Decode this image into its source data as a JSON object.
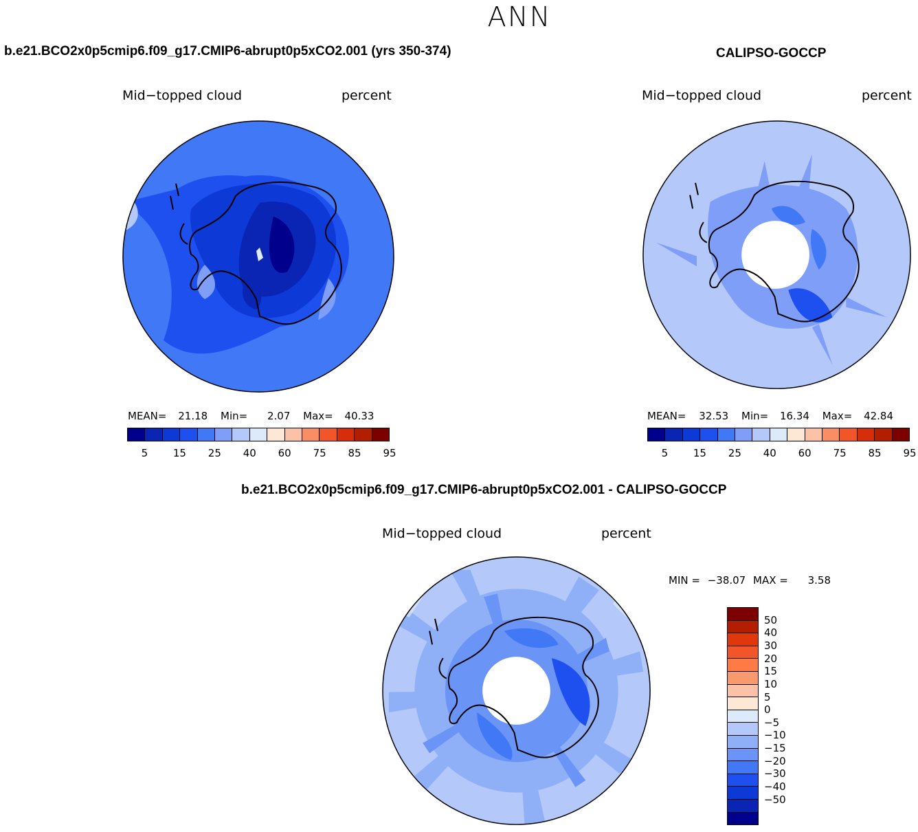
{
  "main_title": "ANN",
  "panels": {
    "model": {
      "case_title": "b.e21.BCO2x0p5cmip6.f09_g17.CMIP6-abrupt0p5xCO2.001 (yrs 350-374)",
      "variable": "Mid−topped cloud",
      "units": "percent",
      "stats": {
        "mean_label": "MEAN=",
        "mean": "21.18",
        "min_label": "Min=",
        "min": "2.07",
        "max_label": "Max=",
        "max": "40.33"
      }
    },
    "obs": {
      "case_title": "CALIPSO-GOCCP",
      "variable": "Mid−topped cloud",
      "units": "percent",
      "stats": {
        "mean_label": "MEAN=",
        "mean": "32.53",
        "min_label": "Min=",
        "min": "16.34",
        "max_label": "Max=",
        "max": "42.84"
      }
    },
    "diff": {
      "case_title": "b.e21.BCO2x0p5cmip6.f09_g17.CMIP6-abrupt0p5xCO2.001 - CALIPSO-GOCCP",
      "variable": "Mid−topped cloud",
      "units": "percent",
      "stats": {
        "min_label": "MIN =",
        "min": "−38.07",
        "max_label": "MAX =",
        "max": "3.58"
      }
    }
  },
  "colorbar_abs": {
    "colors": [
      "#00008c",
      "#0a24b4",
      "#0d3ad7",
      "#1e50f0",
      "#4178f5",
      "#7e9ef7",
      "#b4c8fa",
      "#dceafa",
      "#fde8d6",
      "#fcc2a8",
      "#f98e64",
      "#f2552a",
      "#d72d0a",
      "#b31e00",
      "#7d0000"
    ],
    "ticks": [
      "5",
      "15",
      "25",
      "40",
      "60",
      "75",
      "85",
      "95"
    ]
  },
  "colorbar_diff": {
    "colors": [
      "#7d0000",
      "#b31e00",
      "#e0380a",
      "#f2552a",
      "#ff7a44",
      "#f99a6e",
      "#fcc2a8",
      "#fde8d6",
      "#dceafa",
      "#b4c8fa",
      "#8fb0f7",
      "#6a94f5",
      "#4178f5",
      "#1e50f0",
      "#0d3ad7",
      "#0a24b4",
      "#00008c"
    ],
    "ticks": [
      "50",
      "40",
      "30",
      "20",
      "15",
      "10",
      "5",
      "0",
      "−5",
      "−10",
      "−15",
      "−20",
      "−30",
      "−40",
      "−50"
    ]
  }
}
